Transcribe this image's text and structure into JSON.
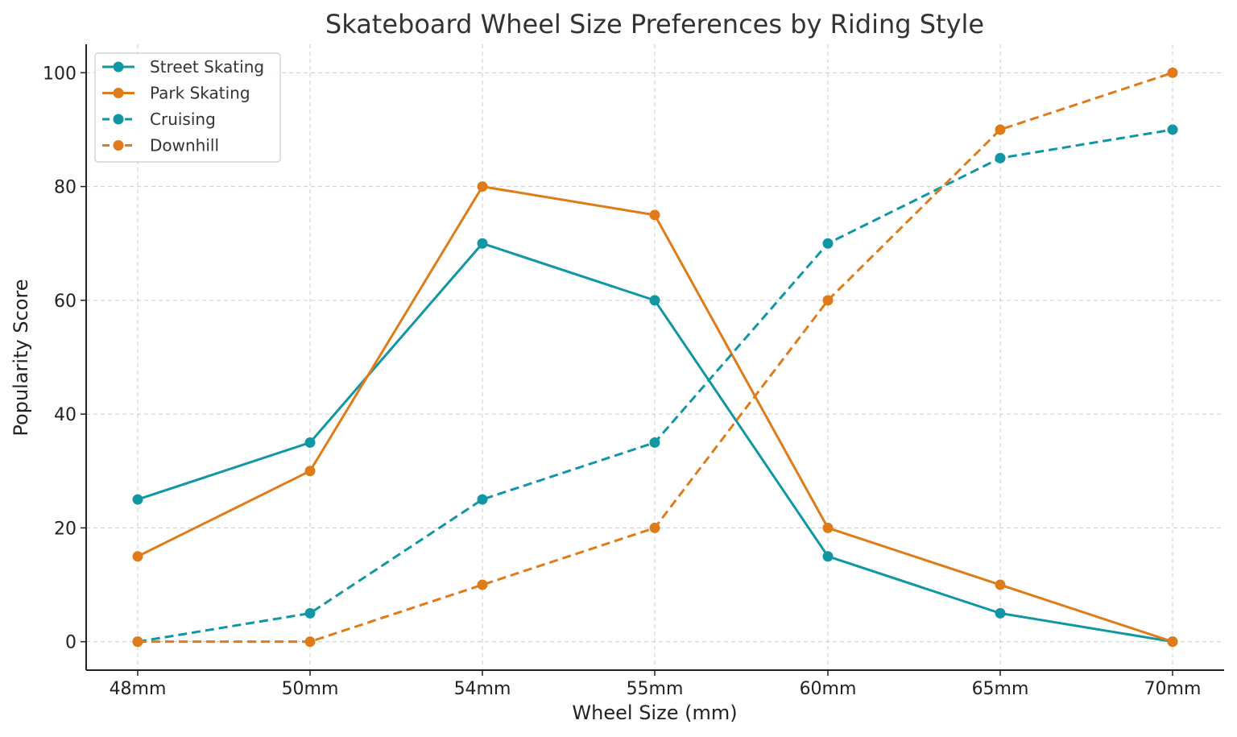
{
  "chart_data": {
    "type": "line",
    "title": "Skateboard Wheel Size Preferences by Riding Style",
    "xlabel": "Wheel Size (mm)",
    "ylabel": "Popularity Score",
    "categories": [
      "48mm",
      "50mm",
      "54mm",
      "55mm",
      "60mm",
      "65mm",
      "70mm"
    ],
    "ylim": [
      -5,
      105
    ],
    "yticks": [
      0,
      20,
      40,
      60,
      80,
      100
    ],
    "grid": true,
    "legend_position": "top-left",
    "series": [
      {
        "name": "Street Skating",
        "values": [
          25,
          35,
          70,
          60,
          15,
          5,
          0
        ],
        "color": "#1196a3",
        "style": "solid"
      },
      {
        "name": "Park Skating",
        "values": [
          15,
          30,
          80,
          75,
          20,
          10,
          0
        ],
        "color": "#e07b1a",
        "style": "solid"
      },
      {
        "name": "Cruising",
        "values": [
          0,
          5,
          25,
          35,
          70,
          85,
          90
        ],
        "color": "#1196a3",
        "style": "dashed"
      },
      {
        "name": "Downhill",
        "values": [
          0,
          0,
          10,
          20,
          60,
          90,
          100
        ],
        "color": "#e07b1a",
        "style": "dashed"
      }
    ]
  }
}
